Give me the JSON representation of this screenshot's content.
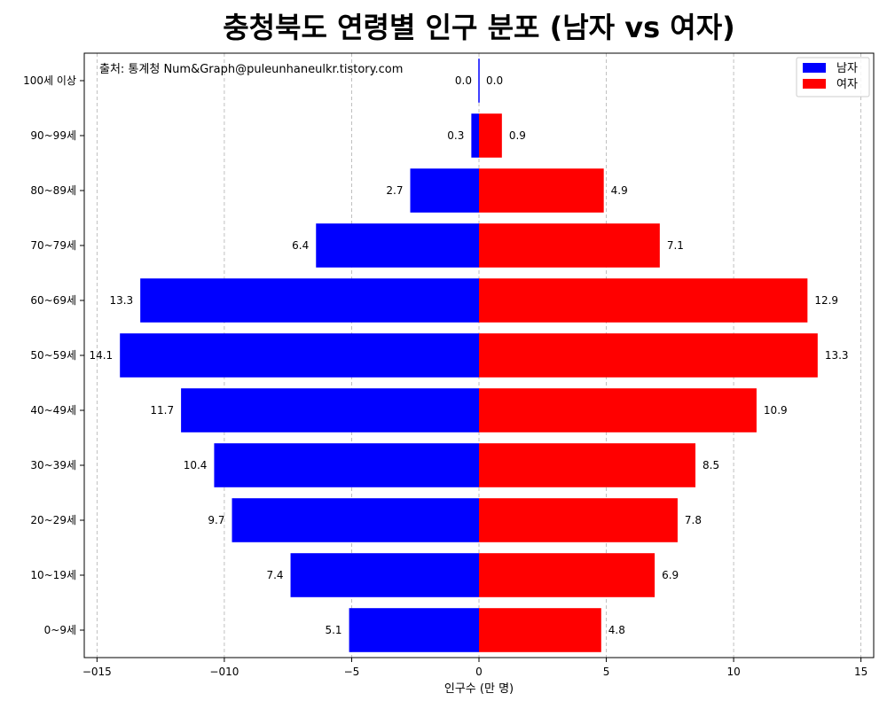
{
  "chart_data": {
    "type": "bar",
    "orientation": "horizontal",
    "title": "충청북도 연령별 인구 분포 (남자 vs 여자)",
    "xlabel": "인구수 (만 명)",
    "ylabel": "",
    "source": "출처: 통계청 Num&Graph@puleunhaneulkr.tistory.com",
    "categories": [
      "0~9세",
      "10~19세",
      "20~29세",
      "30~39세",
      "40~49세",
      "50~59세",
      "60~69세",
      "70~79세",
      "80~89세",
      "90~99세",
      "100세 이상"
    ],
    "series": [
      {
        "name": "남자",
        "color": "#0000ff",
        "values": [
          5.1,
          7.4,
          9.7,
          10.4,
          11.7,
          14.1,
          13.3,
          6.4,
          2.7,
          0.3,
          0.0
        ],
        "labels": [
          "5.1",
          "7.4",
          "9.7",
          "10.4",
          "11.7",
          "14.1",
          "13.3",
          "6.4",
          "2.7",
          "0.3",
          "0.0"
        ]
      },
      {
        "name": "여자",
        "color": "#ff0000",
        "values": [
          4.8,
          6.9,
          7.8,
          8.5,
          10.9,
          13.3,
          12.9,
          7.1,
          4.9,
          0.9,
          0.0
        ],
        "labels": [
          "4.8",
          "6.9",
          "7.8",
          "8.5",
          "10.9",
          "13.3",
          "12.9",
          "7.1",
          "4.9",
          "0.9",
          "0.0"
        ]
      }
    ],
    "xlim": [
      -15.5,
      15.5
    ],
    "xticks": [
      -15,
      -10,
      -5,
      0,
      5,
      10,
      15
    ],
    "xtick_labels": [
      "−015",
      "−010",
      "−5",
      "0",
      "5",
      "10",
      "15"
    ],
    "grid": "x-dashed",
    "legend_position": "top-right"
  }
}
